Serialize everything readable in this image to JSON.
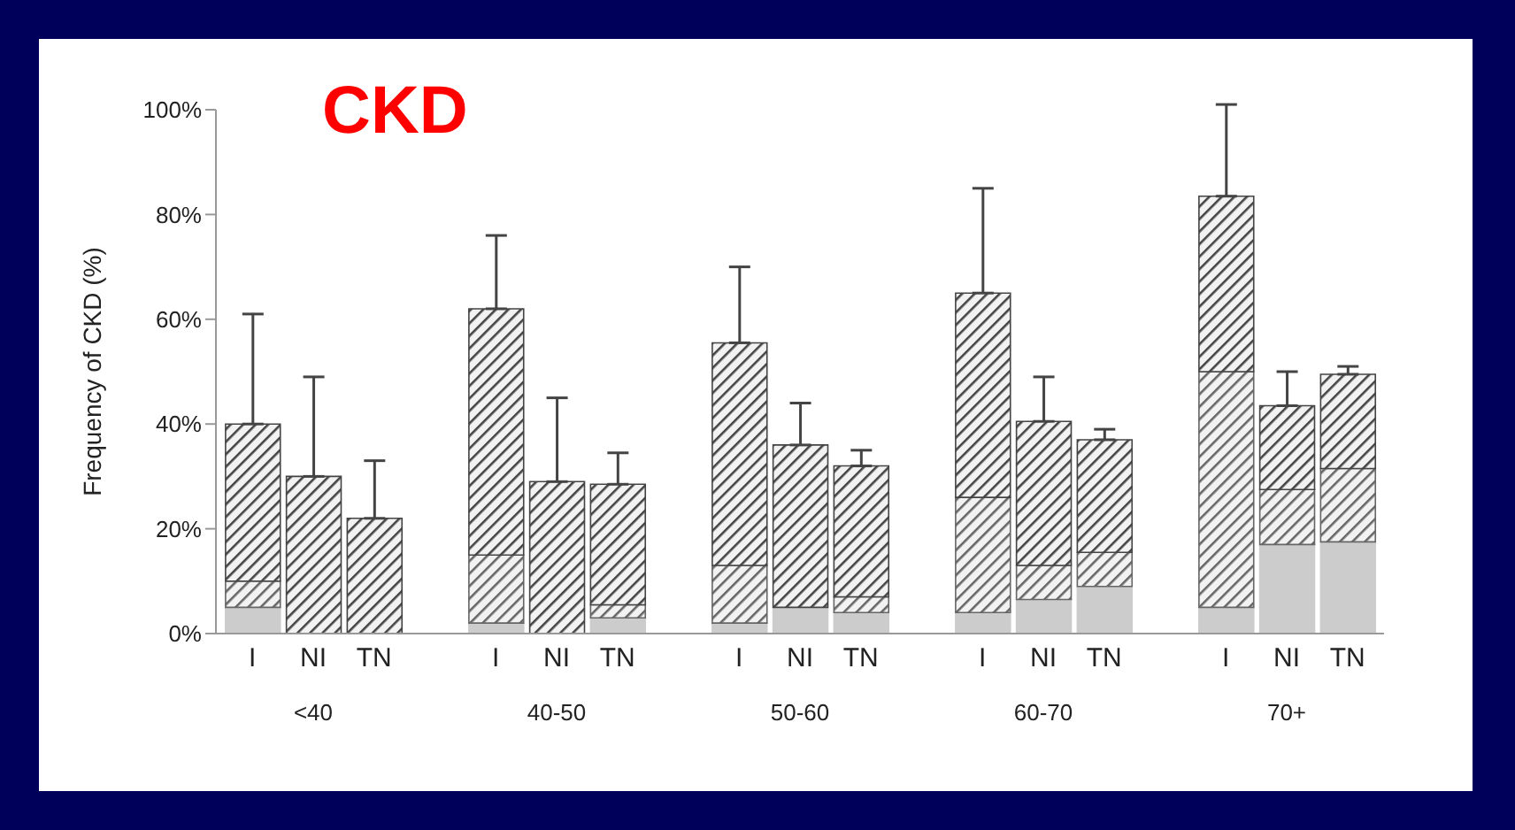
{
  "chart_data": {
    "type": "bar",
    "title": "CKD",
    "ylabel": "Frequency of CKD (%)",
    "categories": [
      "I",
      "NI",
      "TN",
      "I",
      "NI",
      "TN",
      "I",
      "NI",
      "TN",
      "I",
      "NI",
      "TN",
      "I",
      "NI",
      "TN"
    ],
    "annotations": [
      "<40",
      "40-50",
      "50-60",
      "60-70",
      "70+"
    ],
    "stacked": true,
    "legend": false,
    "grid": false,
    "ylim": [
      0,
      100
    ],
    "yticks": [
      {
        "value": 0,
        "label": "0%"
      },
      {
        "value": 20,
        "label": "20%"
      },
      {
        "value": 40,
        "label": "40%"
      },
      {
        "value": 60,
        "label": "60%"
      },
      {
        "value": 80,
        "label": "80%"
      },
      {
        "value": 100,
        "label": "100%"
      }
    ],
    "series": [
      {
        "color": "#cccccc",
        "values": [
          5,
          0,
          0,
          2,
          0,
          3,
          2,
          5,
          4,
          4,
          6.5,
          9,
          5,
          17,
          17.5
        ]
      },
      {
        "color": "#666666",
        "values": [
          5,
          0,
          0,
          13,
          0,
          2.5,
          11,
          0,
          3,
          22,
          6.5,
          6.5,
          45,
          10.5,
          14
        ]
      },
      {
        "color": "#444444",
        "values": [
          30,
          30,
          22,
          47,
          29,
          23,
          42.5,
          31,
          25,
          39,
          27.5,
          21.5,
          33.5,
          16,
          18
        ],
        "errors": [
          [
            40,
            61
          ],
          [
            30,
            49
          ],
          [
            22,
            33
          ],
          [
            62,
            76
          ],
          [
            29,
            45
          ],
          [
            28.5,
            34.5
          ],
          [
            55.5,
            70
          ],
          [
            36,
            44
          ],
          [
            32,
            35
          ],
          [
            65,
            85
          ],
          [
            40.5,
            49
          ],
          [
            37,
            39
          ],
          [
            83.5,
            101
          ],
          [
            43.5,
            50
          ],
          [
            49.5,
            51
          ]
        ]
      }
    ]
  }
}
